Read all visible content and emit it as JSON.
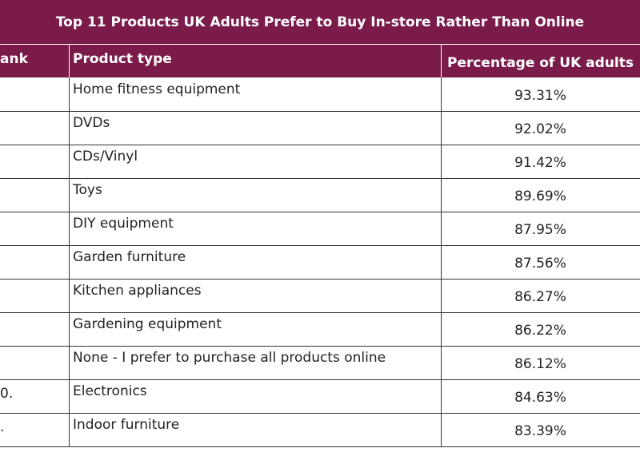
{
  "header": {
    "title": "Top 11 Products UK Adults Prefer to Buy In-store Rather Than Online"
  },
  "table": {
    "columns": [
      "ank",
      "Product type",
      "Percentage of UK adults"
    ],
    "rows": [
      {
        "product": "Home fitness equipment",
        "percentage": "93.31%"
      },
      {
        "product": "DVDs",
        "percentage": "92.02%"
      },
      {
        "product": "CDs/Vinyl",
        "percentage": "91.42%"
      },
      {
        "product": "Toys",
        "percentage": "89.69%"
      },
      {
        "product": "DIY equipment",
        "percentage": "87.95%"
      },
      {
        "product": "Garden furniture",
        "percentage": "87.56%"
      },
      {
        "product": "Kitchen appliances",
        "percentage": "86.27%"
      },
      {
        "product": "Gardening equipment",
        "percentage": "86.22%"
      },
      {
        "product": "None - I prefer to purchase all products online",
        "percentage": "86.12%"
      },
      {
        "rank": "0.",
        "product": "Electronics",
        "percentage": "84.63%"
      },
      {
        "rank": ".",
        "product": "Indoor furniture",
        "percentage": "83.39%"
      }
    ]
  }
}
